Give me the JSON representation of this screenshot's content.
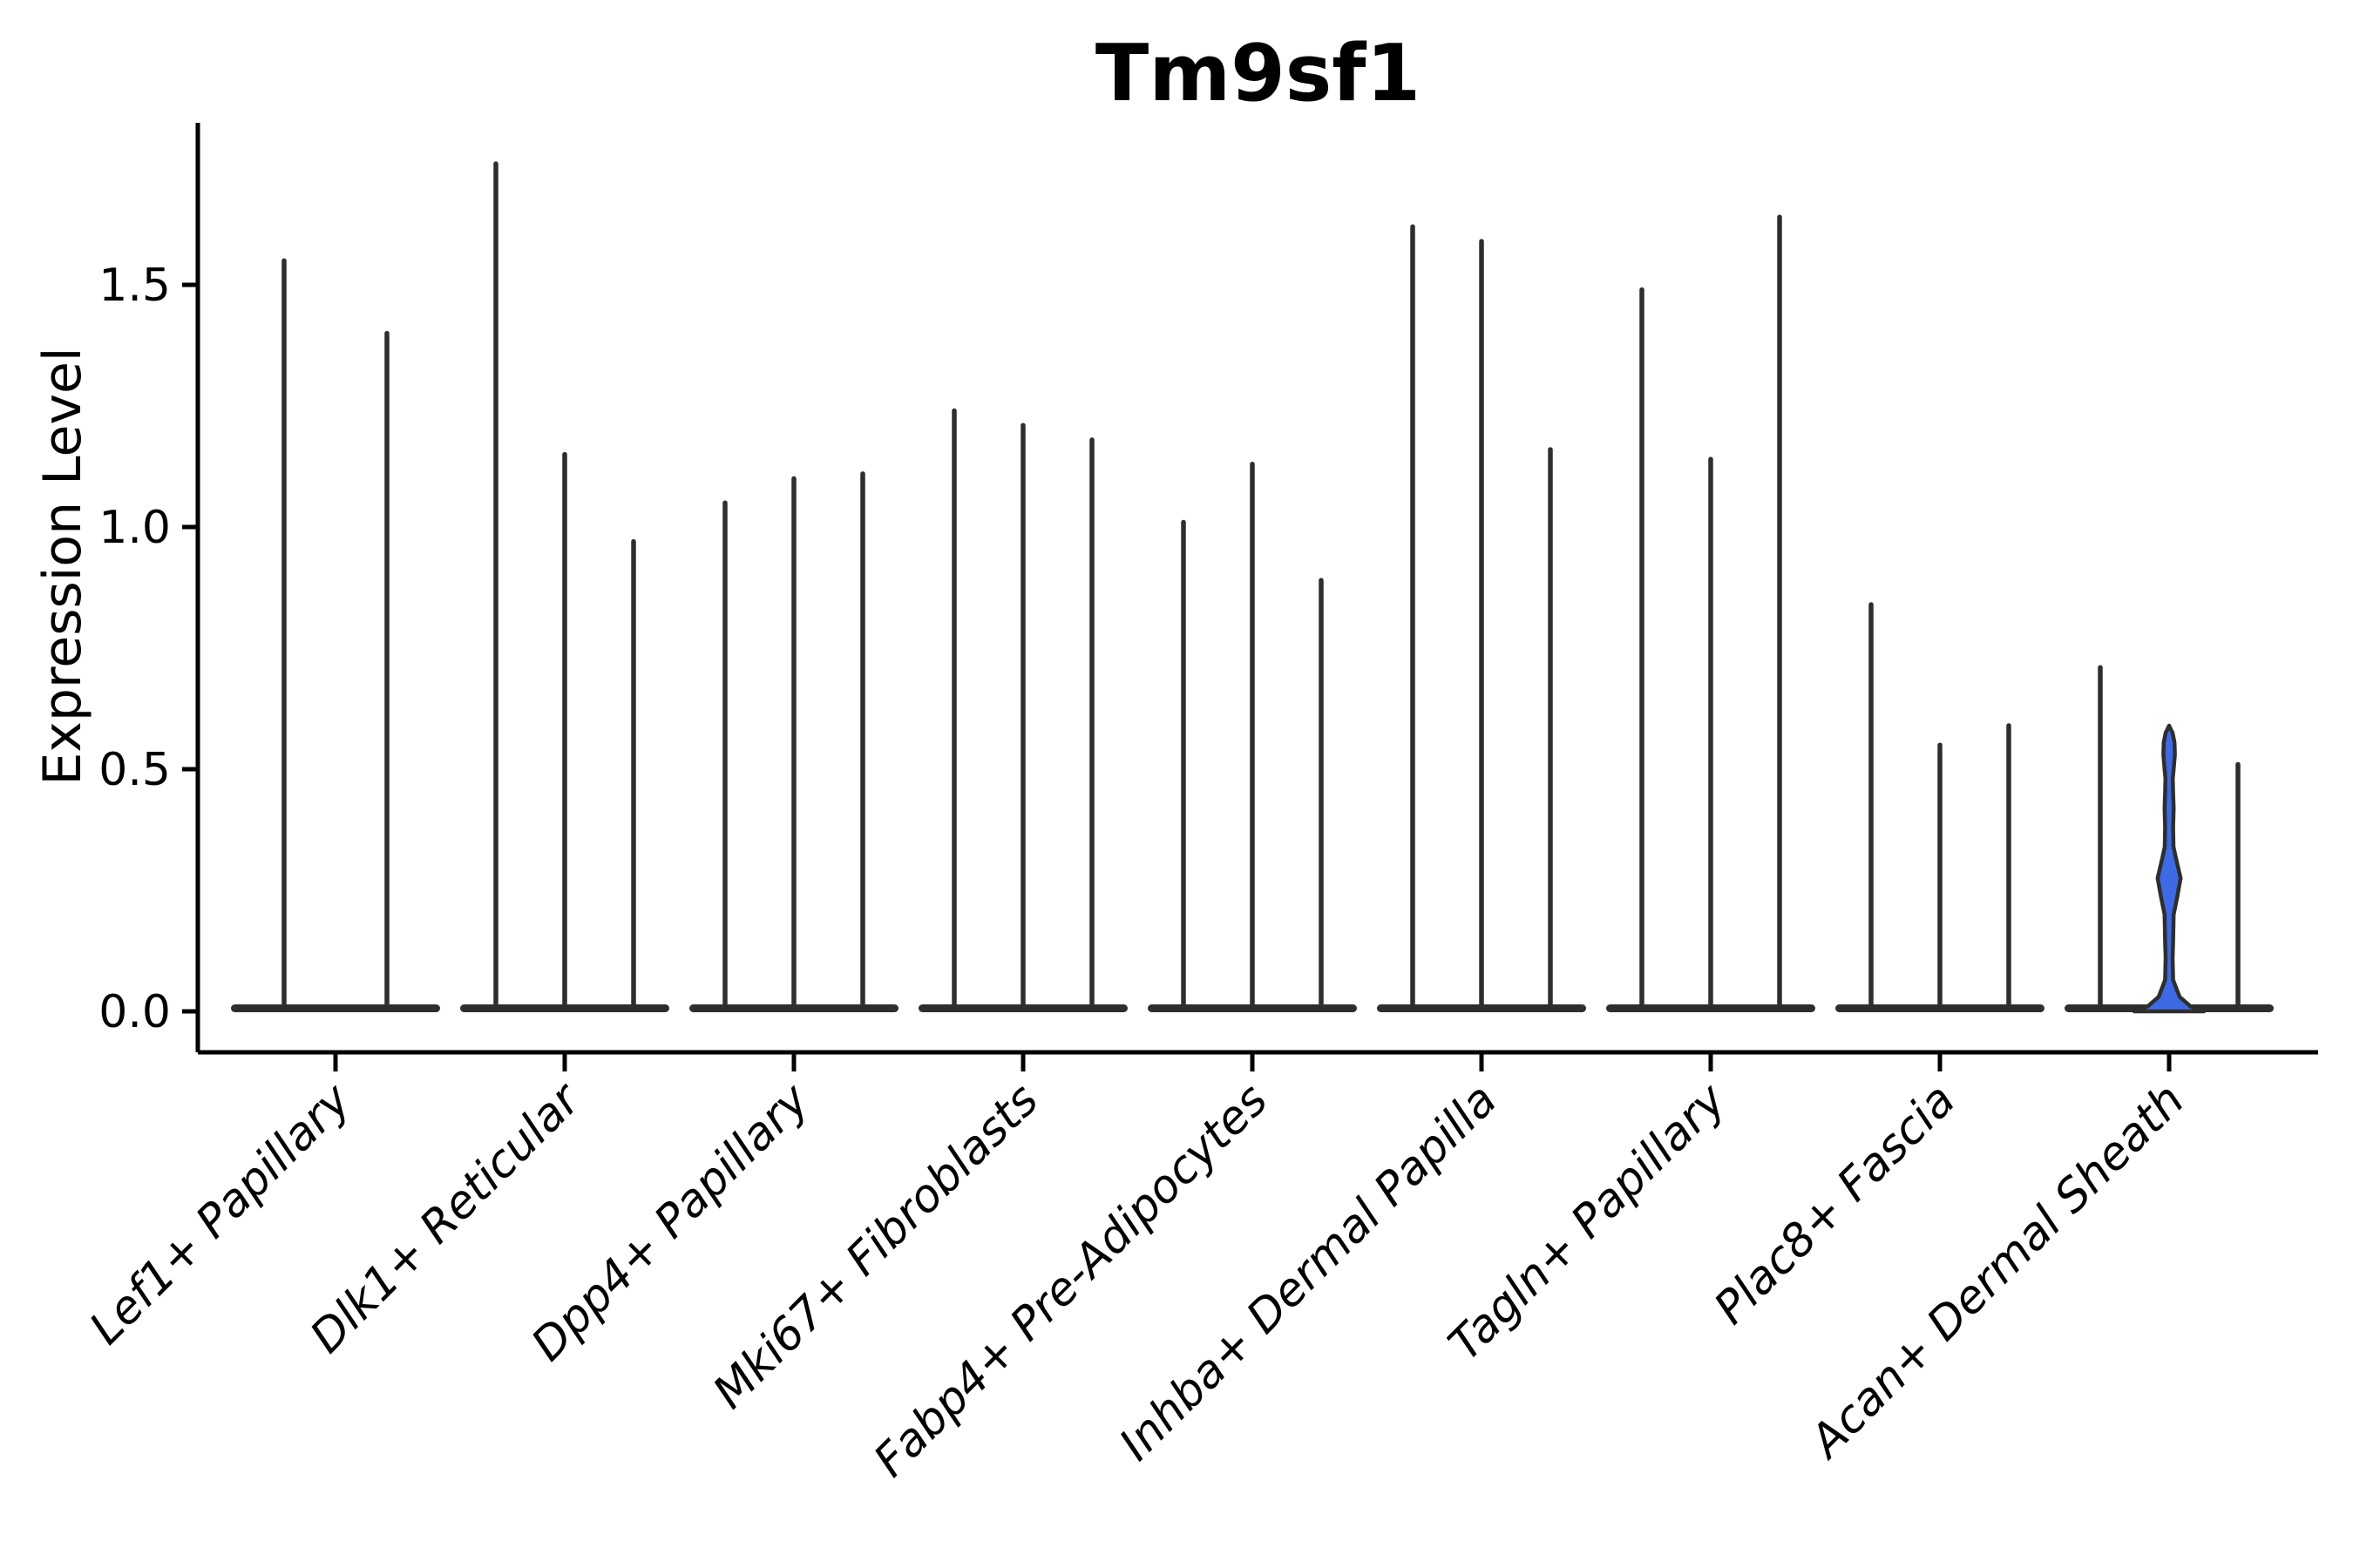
{
  "chart_data": {
    "type": "violin",
    "title": "Tm9sf1",
    "xlabel": "",
    "ylabel": "Expression Level",
    "yticks": [
      "0.0",
      "0.5",
      "1.0",
      "1.5"
    ],
    "ytick_values": [
      0.0,
      0.5,
      1.0,
      1.5
    ],
    "ylim": [
      -0.09,
      1.84
    ],
    "grid": false,
    "legend": "none",
    "x_label_rotation_deg": 45,
    "x_label_style": "italic",
    "categories": [
      "Lef1+ Papillary",
      "Dlk1+ Reticular",
      "Dpp4+ Papillary",
      "Mki67+ Fibroblasts",
      "Fabp4+ Pre-Adipocytes",
      "Inhba+ Dermal Papilla",
      "Tagln+ Papillary",
      "Plac8+ Fascia",
      "Acan+ Dermal Sheath"
    ],
    "groups": [
      {
        "category": "Lef1+ Papillary",
        "violin_max_expression": [
          1.55,
          1.4
        ]
      },
      {
        "category": "Dlk1+ Reticular",
        "violin_max_expression": [
          1.75,
          1.15,
          0.97
        ]
      },
      {
        "category": "Dpp4+ Papillary",
        "violin_max_expression": [
          1.05,
          1.1,
          1.11
        ]
      },
      {
        "category": "Mki67+ Fibroblasts",
        "violin_max_expression": [
          1.24,
          1.21,
          1.18
        ]
      },
      {
        "category": "Fabp4+ Pre-Adipocytes",
        "violin_max_expression": [
          1.01,
          1.13,
          0.89
        ]
      },
      {
        "category": "Inhba+ Dermal Papilla",
        "violin_max_expression": [
          1.62,
          1.59,
          1.16
        ]
      },
      {
        "category": "Tagln+ Papillary",
        "violin_max_expression": [
          1.49,
          1.14,
          1.64
        ]
      },
      {
        "category": "Plac8+ Fascia",
        "violin_max_expression": [
          0.84,
          0.55,
          0.59
        ]
      },
      {
        "category": "Acan+ Dermal Sheath",
        "violin_max_expression": [
          0.71,
          0.59,
          0.51
        ],
        "highlighted_violin_index": 1,
        "highlighted_violin": {
          "max_expression": 0.59,
          "fill": "#3E6BE4",
          "density_profile": [
            [
              0.59,
              0.0
            ],
            [
              0.575,
              0.1
            ],
            [
              0.555,
              0.155
            ],
            [
              0.53,
              0.165
            ],
            [
              0.5,
              0.13
            ],
            [
              0.48,
              0.105
            ],
            [
              0.45,
              0.115
            ],
            [
              0.42,
              0.13
            ],
            [
              0.38,
              0.115
            ],
            [
              0.34,
              0.125
            ],
            [
              0.315,
              0.2
            ],
            [
              0.275,
              0.33
            ],
            [
              0.235,
              0.23
            ],
            [
              0.2,
              0.13
            ],
            [
              0.145,
              0.115
            ],
            [
              0.11,
              0.1
            ],
            [
              0.065,
              0.115
            ],
            [
              0.03,
              0.3
            ],
            [
              0.01,
              0.62
            ],
            [
              0.0,
              1.0
            ]
          ]
        }
      }
    ],
    "colors": {
      "background": "#ffffff",
      "violin_outline": "#2e2e2e",
      "highlight_fill": "#3E6BE4",
      "axis": "#000000",
      "text": "#000000"
    }
  }
}
